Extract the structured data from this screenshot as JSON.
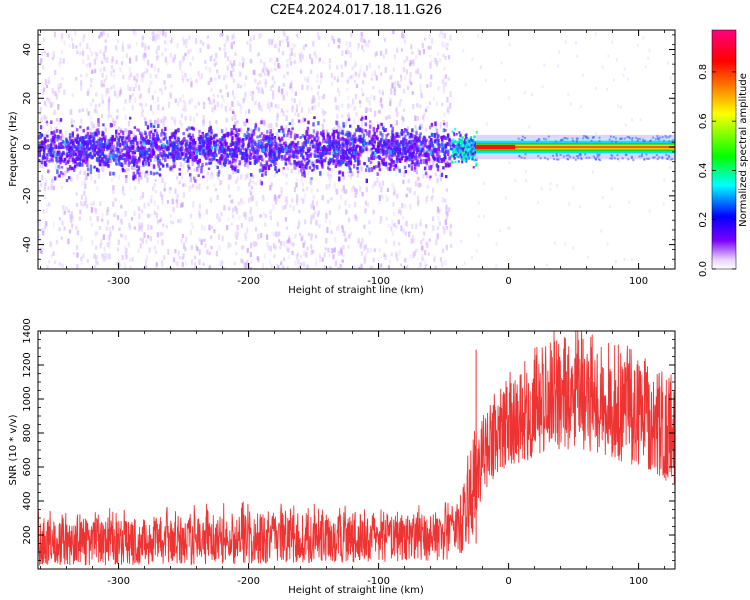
{
  "title": "C2E4.2024.017.18.11.G26",
  "chart_data": [
    {
      "type": "heatmap",
      "xlabel": "Height of straight line (km)",
      "ylabel": "Frequency (Hz)",
      "xlim": [
        -362,
        128
      ],
      "ylim": [
        -50,
        48
      ],
      "xticks": [
        -300,
        -200,
        -100,
        0,
        100
      ],
      "yticks": [
        -40,
        -20,
        0,
        20,
        40
      ],
      "colorbar": {
        "label": "Normalized spectral amplitude",
        "ticks": [
          0.0,
          0.2,
          0.4,
          0.6,
          0.8
        ],
        "range": [
          0,
          0.97
        ],
        "colormap": [
          "#e8d0ff",
          "#7a00ff",
          "#0000ff",
          "#00ffff",
          "#00ff00",
          "#ffff00",
          "#ff8000",
          "#ff0000",
          "#ff0080"
        ]
      },
      "regions": [
        {
          "x_range": [
            -362,
            -45
          ],
          "core_band_hz": [
            -8,
            8
          ],
          "diffuse_band_hz": [
            -50,
            48
          ],
          "peak_amplitude": 0.25
        },
        {
          "x_range": [
            -45,
            -25
          ],
          "core_band_hz": [
            -4,
            4
          ],
          "peak_amplitude": 0.45
        },
        {
          "x_range": [
            -25,
            5
          ],
          "core_band_hz": [
            -1,
            1
          ],
          "peak_amplitude": 0.95
        },
        {
          "x_range": [
            5,
            128
          ],
          "core_band_hz": [
            -1.5,
            1.5
          ],
          "peak_amplitude": 0.6
        }
      ]
    },
    {
      "type": "line",
      "xlabel": "Height of straight line (km)",
      "ylabel": "SNR (10 * v/v)",
      "xlim": [
        -362,
        128
      ],
      "ylim": [
        0,
        1400
      ],
      "xticks": [
        -300,
        -200,
        -100,
        0,
        100
      ],
      "yticks": [
        200,
        400,
        600,
        800,
        1000,
        1200,
        1400
      ],
      "series": [
        {
          "color": "#ee3333",
          "x": [
            -362,
            -300,
            -250,
            -200,
            -150,
            -100,
            -60,
            -40,
            -30,
            -25,
            -20,
            -15,
            -10,
            0,
            10,
            20,
            30,
            50,
            70,
            90,
            110,
            128
          ],
          "lower": [
            20,
            20,
            25,
            30,
            35,
            40,
            45,
            60,
            150,
            250,
            400,
            500,
            550,
            600,
            620,
            650,
            700,
            700,
            680,
            620,
            580,
            480
          ],
          "upper": [
            300,
            300,
            320,
            340,
            330,
            320,
            330,
            360,
            650,
            800,
            900,
            950,
            1000,
            1100,
            1150,
            1250,
            1380,
            1400,
            1320,
            1260,
            1180,
            1150
          ]
        }
      ]
    }
  ]
}
